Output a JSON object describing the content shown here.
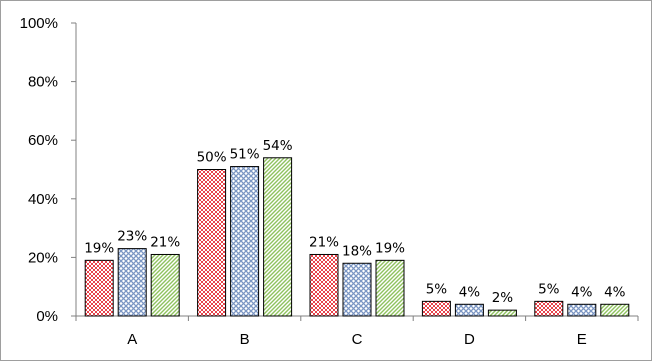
{
  "chart_data": {
    "type": "bar",
    "categories": [
      "A",
      "B",
      "C",
      "D",
      "E"
    ],
    "series": [
      {
        "values": [
          19,
          50,
          21,
          5,
          5
        ],
        "color": "#e8434b",
        "pattern": "checker"
      },
      {
        "values": [
          23,
          51,
          18,
          4,
          4
        ],
        "color": "#7b96c4",
        "pattern": "crosshatch"
      },
      {
        "values": [
          21,
          54,
          19,
          2,
          4
        ],
        "color": "#8fc25f",
        "pattern": "diagonal"
      }
    ],
    "data_labels": [
      [
        "19%",
        "50%",
        "21%",
        "5%",
        "5%"
      ],
      [
        "23%",
        "51%",
        "18%",
        "4%",
        "4%"
      ],
      [
        "21%",
        "54%",
        "19%",
        "2%",
        "4%"
      ]
    ],
    "y_ticks": [
      "0%",
      "20%",
      "40%",
      "60%",
      "80%",
      "100%"
    ],
    "ylim": [
      0,
      100
    ],
    "grid": false,
    "legend": "none"
  }
}
